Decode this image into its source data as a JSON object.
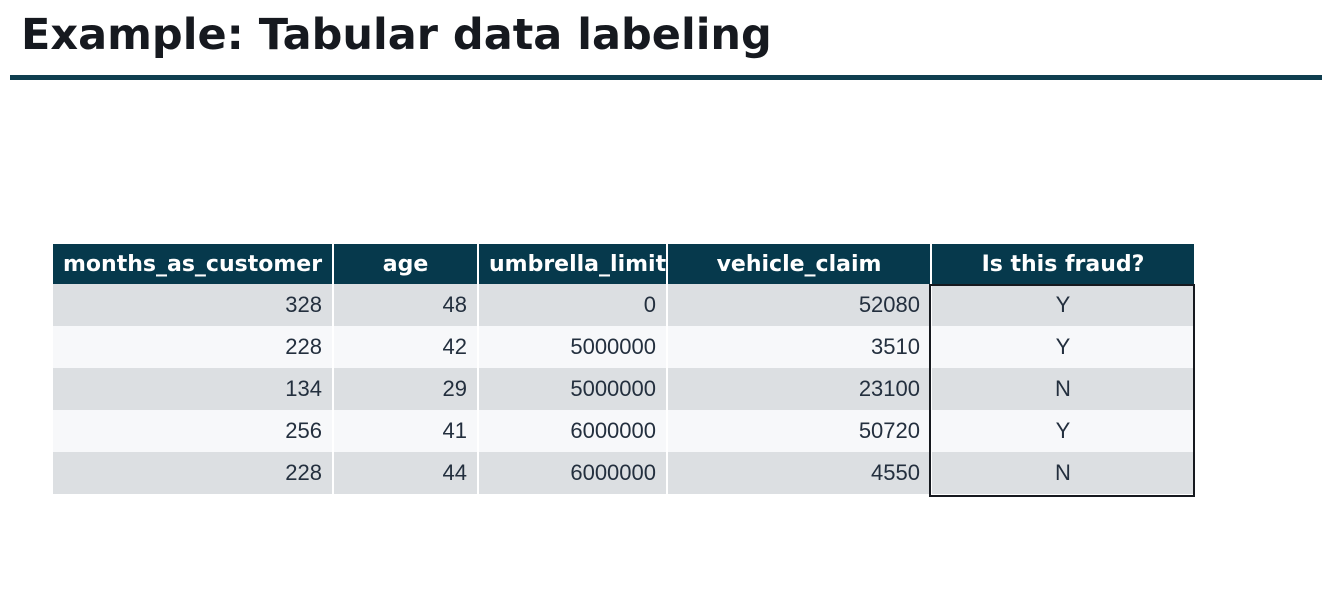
{
  "title": "Example: Tabular data labeling",
  "table": {
    "headers": [
      "months_as_customer",
      "age",
      "umbrella_limit",
      "vehicle_claim",
      "Is this fraud?"
    ],
    "rows": [
      [
        "328",
        "48",
        "0",
        "52080",
        "Y"
      ],
      [
        "228",
        "42",
        "5000000",
        "3510",
        "Y"
      ],
      [
        "134",
        "29",
        "5000000",
        "23100",
        "N"
      ],
      [
        "256",
        "41",
        "6000000",
        "50720",
        "Y"
      ],
      [
        "228",
        "44",
        "6000000",
        "4550",
        "N"
      ]
    ]
  },
  "colors": {
    "title_text": "#16191f",
    "rule": "#0f3e4f",
    "header_bg": "#06394c",
    "header_text": "#ffffff",
    "row_odd_bg": "#dcdfe2",
    "row_even_bg": "#f7f8fa",
    "highlight_border": "#16191f"
  }
}
